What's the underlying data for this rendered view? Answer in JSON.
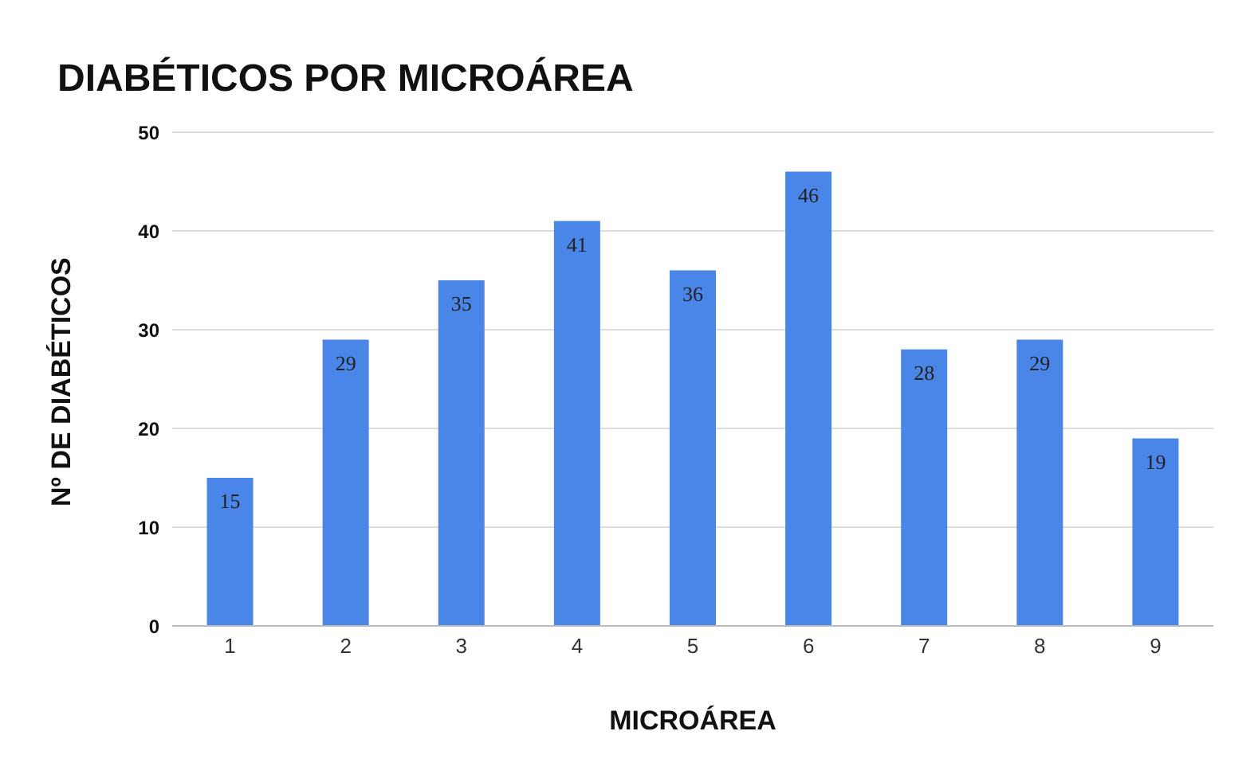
{
  "chart_data": {
    "type": "bar",
    "title": "DIABÉTICOS POR MICROÁREA",
    "xlabel": "MICROÁREA",
    "ylabel": "Nº DE DIABÉTICOS",
    "categories": [
      "1",
      "2",
      "3",
      "4",
      "5",
      "6",
      "7",
      "8",
      "9"
    ],
    "values": [
      15,
      29,
      35,
      41,
      36,
      46,
      28,
      29,
      19
    ],
    "color": "#4a86e8",
    "ylim": [
      0,
      50
    ],
    "yticks": [
      0,
      10,
      20,
      30,
      40,
      50
    ],
    "grid": "y",
    "data_labels": true
  }
}
